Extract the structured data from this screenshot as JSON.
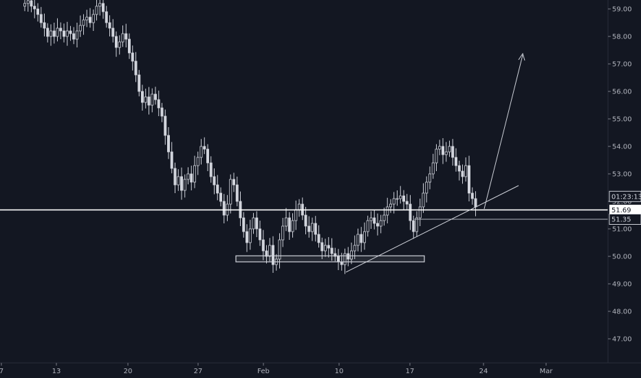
{
  "chart_data": {
    "type": "candlestick",
    "y_axis": {
      "ticks": [
        "59.00",
        "58.00",
        "57.00",
        "56.00",
        "55.00",
        "54.00",
        "53.00",
        "52.00",
        "51.00",
        "50.00",
        "49.00",
        "48.00",
        "47.00"
      ],
      "tick_values": [
        59,
        58,
        57,
        56,
        55,
        54,
        53,
        52,
        51,
        50,
        49,
        48,
        47
      ],
      "range": [
        46.0,
        59.3
      ]
    },
    "x_axis": {
      "labels": [
        "7",
        "13",
        "20",
        "27",
        "Feb",
        "10",
        "17",
        "24",
        "Mar"
      ]
    },
    "price_badges": [
      {
        "text": "01:23:13",
        "value": 52.18,
        "style": "dark"
      },
      {
        "text": "51.69",
        "value": 51.69,
        "style": "light"
      },
      {
        "text": "51.35",
        "value": 51.35,
        "style": "dark"
      }
    ],
    "lines": {
      "horizontal_price": 51.69,
      "minor_horizontal_price": 51.35,
      "support_zone": [
        49.8,
        50.02
      ]
    },
    "candles_close": [
      59.2,
      59.3,
      59.1,
      59.0,
      58.8,
      58.5,
      58.3,
      58.0,
      58.2,
      58.0,
      58.3,
      58.2,
      58.0,
      58.2,
      58.1,
      57.9,
      58.2,
      58.4,
      58.6,
      58.7,
      58.5,
      58.8,
      59.1,
      59.2,
      58.9,
      58.5,
      58.3,
      58.0,
      57.6,
      57.8,
      58.1,
      57.9,
      57.4,
      57.1,
      56.6,
      56.0,
      55.6,
      55.8,
      55.5,
      55.9,
      55.7,
      55.4,
      55.1,
      54.4,
      53.8,
      53.2,
      52.6,
      52.9,
      52.4,
      52.8,
      53.0,
      52.7,
      53.3,
      53.6,
      54.0,
      53.9,
      53.4,
      52.9,
      52.6,
      52.3,
      52.0,
      51.5,
      51.9,
      52.8,
      52.6,
      52.0,
      51.4,
      50.9,
      50.5,
      51.0,
      51.4,
      51.0,
      50.6,
      50.2,
      50.0,
      50.4,
      49.7,
      49.9,
      50.6,
      51.1,
      51.4,
      50.9,
      51.3,
      51.7,
      51.9,
      51.5,
      51.1,
      50.9,
      51.2,
      50.8,
      50.5,
      50.2,
      50.4,
      50.3,
      50.1,
      50.0,
      49.8,
      49.7,
      50.1,
      49.9,
      50.2,
      50.4,
      50.8,
      50.5,
      50.9,
      51.3,
      51.4,
      51.2,
      51.1,
      51.3,
      51.5,
      51.8,
      51.9,
      52.1,
      52.1,
      52.2,
      52.0,
      51.9,
      51.3,
      50.9,
      51.4,
      51.8,
      52.3,
      52.7,
      53.0,
      53.4,
      53.9,
      54.0,
      53.7,
      53.8,
      54.0,
      53.6,
      53.3,
      53.1,
      52.9,
      53.3,
      52.3,
      52.1,
      51.8
    ]
  }
}
